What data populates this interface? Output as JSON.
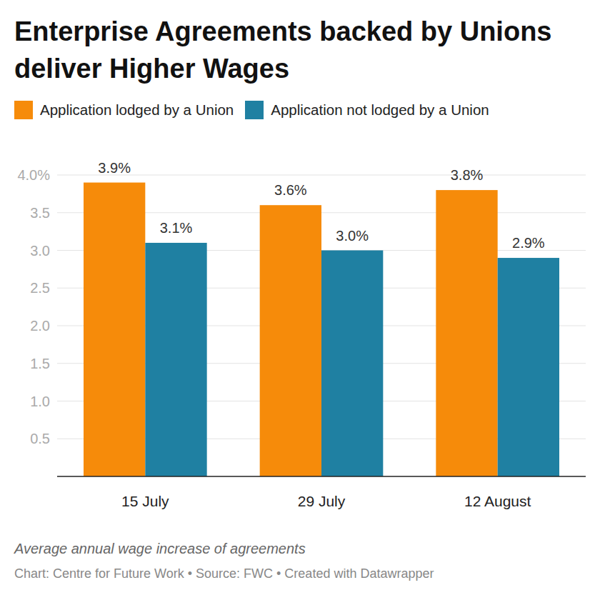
{
  "chart_data": {
    "type": "bar",
    "title": "Enterprise Agreements backed by Unions deliver Higher Wages",
    "caption": "Average annual wage increase of agreements",
    "source": "Chart: Centre for Future Work • Source: FWC • Created with Datawrapper",
    "categories": [
      "15 July",
      "29 July",
      "12 August"
    ],
    "series": [
      {
        "name": "Application lodged by a Union",
        "color": "#f68b0a",
        "values": [
          3.9,
          3.6,
          3.8
        ],
        "value_labels": [
          "3.9%",
          "3.6%",
          "3.8%"
        ]
      },
      {
        "name": "Application not lodged by a Union",
        "color": "#1f80a2",
        "values": [
          3.1,
          3.0,
          2.9
        ],
        "value_labels": [
          "3.1%",
          "3.0%",
          "2.9%"
        ]
      }
    ],
    "ylim": [
      0,
      4
    ],
    "yticks": [
      {
        "value": 0.5,
        "label": "0.5"
      },
      {
        "value": 1,
        "label": "1.0"
      },
      {
        "value": 1.5,
        "label": "1.5"
      },
      {
        "value": 2,
        "label": "2.0"
      },
      {
        "value": 2.5,
        "label": "2.5"
      },
      {
        "value": 3,
        "label": "3.0"
      },
      {
        "value": 3.5,
        "label": "3.5"
      },
      {
        "value": 4,
        "label": "4.0%"
      }
    ],
    "grid": true,
    "legend": "top",
    "data_labels": true
  }
}
